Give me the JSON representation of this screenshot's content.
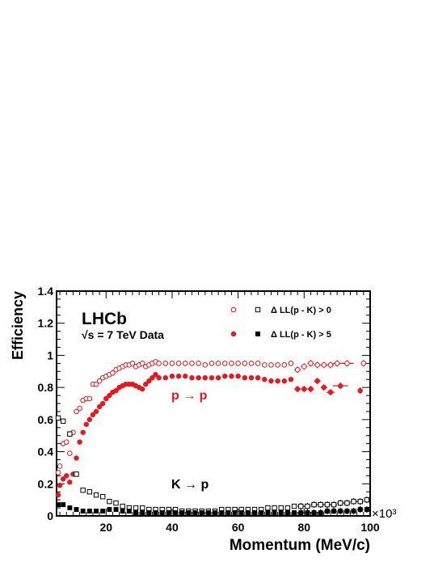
{
  "chart_data": {
    "type": "scatter",
    "xlabel": "Momentum (MeV/c)",
    "ylabel": "Efficiency",
    "x_scale_label": "×10³",
    "xlim": [
      5,
      100
    ],
    "ylim": [
      0,
      1.4
    ],
    "x_ticks": [
      20,
      40,
      60,
      80,
      100
    ],
    "y_ticks": [
      0,
      0.2,
      0.4,
      0.6,
      0.8,
      1,
      1.2,
      1.4
    ],
    "annotations": {
      "experiment": "LHCb",
      "energy": "√s = 7 TeV Data",
      "p_to_p": "p → p",
      "k_to_p": "K → p"
    },
    "legend": {
      "placement": "top-right",
      "entries": [
        {
          "label": "Δ LL(p - K) > 0",
          "markers": [
            "open-circle",
            "open-square"
          ]
        },
        {
          "label": "Δ LL(p - K) > 5",
          "markers": [
            "filled-circle",
            "filled-square"
          ]
        }
      ]
    },
    "colors": {
      "p_to_p": "#e8171b",
      "k_to_p": "#000000"
    },
    "series": [
      {
        "name": "p → p, Δ LL(p - K) > 0",
        "marker": "open-circle",
        "color": "#e8171b",
        "points": [
          [
            5.5,
            0.27
          ],
          [
            6,
            0.31
          ],
          [
            7,
            0.45
          ],
          [
            8,
            0.46
          ],
          [
            9,
            0.39
          ],
          [
            10,
            0.52
          ],
          [
            11,
            0.65
          ],
          [
            12,
            0.67
          ],
          [
            13,
            0.72
          ],
          [
            14,
            0.73
          ],
          [
            15,
            0.73
          ],
          [
            16,
            0.82
          ],
          [
            17,
            0.82
          ],
          [
            18,
            0.84
          ],
          [
            19,
            0.86
          ],
          [
            20,
            0.87
          ],
          [
            21,
            0.88
          ],
          [
            22,
            0.89
          ],
          [
            23,
            0.91
          ],
          [
            24,
            0.92
          ],
          [
            25,
            0.93
          ],
          [
            26,
            0.94
          ],
          [
            27,
            0.94
          ],
          [
            28,
            0.95
          ],
          [
            29,
            0.93
          ],
          [
            30,
            0.94
          ],
          [
            31,
            0.95
          ],
          [
            32,
            0.93
          ],
          [
            33,
            0.94
          ],
          [
            34,
            0.95
          ],
          [
            35,
            0.96
          ],
          [
            36,
            0.95
          ],
          [
            38,
            0.95
          ],
          [
            40,
            0.95
          ],
          [
            42,
            0.95
          ],
          [
            44,
            0.95
          ],
          [
            46,
            0.95
          ],
          [
            48,
            0.95
          ],
          [
            50,
            0.94
          ],
          [
            52,
            0.95
          ],
          [
            54,
            0.95
          ],
          [
            56,
            0.95
          ],
          [
            58,
            0.95
          ],
          [
            60,
            0.95
          ],
          [
            62,
            0.95
          ],
          [
            64,
            0.95
          ],
          [
            66,
            0.95
          ],
          [
            68,
            0.94
          ],
          [
            70,
            0.94
          ],
          [
            72,
            0.94
          ],
          [
            74,
            0.94
          ],
          [
            76,
            0.95
          ],
          [
            78,
            0.91
          ],
          [
            80,
            0.93
          ],
          [
            82,
            0.95
          ],
          [
            84,
            0.94
          ],
          [
            86,
            0.94
          ],
          [
            88,
            0.94
          ],
          [
            90,
            0.95
          ],
          [
            93,
            0.95
          ],
          [
            98,
            0.95
          ]
        ]
      },
      {
        "name": "p → p, Δ LL(p - K) > 5",
        "marker": "filled-circle",
        "color": "#e8171b",
        "points": [
          [
            5.5,
            0.13
          ],
          [
            6,
            0.19
          ],
          [
            7,
            0.23
          ],
          [
            8,
            0.25
          ],
          [
            9,
            0.21
          ],
          [
            10,
            0.26
          ],
          [
            11,
            0.36
          ],
          [
            12,
            0.46
          ],
          [
            13,
            0.52
          ],
          [
            14,
            0.57
          ],
          [
            15,
            0.6
          ],
          [
            16,
            0.63
          ],
          [
            17,
            0.65
          ],
          [
            18,
            0.68
          ],
          [
            19,
            0.7
          ],
          [
            20,
            0.73
          ],
          [
            21,
            0.75
          ],
          [
            22,
            0.77
          ],
          [
            23,
            0.78
          ],
          [
            24,
            0.8
          ],
          [
            25,
            0.81
          ],
          [
            26,
            0.82
          ],
          [
            27,
            0.82
          ],
          [
            28,
            0.82
          ],
          [
            29,
            0.81
          ],
          [
            30,
            0.8
          ],
          [
            31,
            0.79
          ],
          [
            32,
            0.82
          ],
          [
            33,
            0.84
          ],
          [
            34,
            0.86
          ],
          [
            35,
            0.88
          ],
          [
            36,
            0.86
          ],
          [
            38,
            0.86
          ],
          [
            40,
            0.87
          ],
          [
            42,
            0.87
          ],
          [
            44,
            0.87
          ],
          [
            46,
            0.86
          ],
          [
            48,
            0.86
          ],
          [
            50,
            0.86
          ],
          [
            52,
            0.86
          ],
          [
            54,
            0.86
          ],
          [
            56,
            0.87
          ],
          [
            58,
            0.87
          ],
          [
            60,
            0.87
          ],
          [
            62,
            0.86
          ],
          [
            64,
            0.86
          ],
          [
            66,
            0.86
          ],
          [
            68,
            0.85
          ],
          [
            70,
            0.84
          ],
          [
            72,
            0.84
          ],
          [
            74,
            0.84
          ],
          [
            76,
            0.85
          ],
          [
            78,
            0.79
          ],
          [
            80,
            0.79
          ],
          [
            82,
            0.79
          ],
          [
            84,
            0.84
          ],
          [
            86,
            0.8
          ],
          [
            88,
            0.77
          ],
          [
            91,
            0.81
          ],
          [
            97,
            0.78
          ]
        ]
      },
      {
        "name": "K → p, Δ LL(p - K) > 0",
        "marker": "open-square",
        "color": "#000000",
        "points": [
          [
            5.5,
            0.61
          ],
          [
            7,
            0.59
          ],
          [
            9,
            0.51
          ],
          [
            11,
            0.26
          ],
          [
            13,
            0.16
          ],
          [
            15,
            0.15
          ],
          [
            17,
            0.13
          ],
          [
            19,
            0.12
          ],
          [
            21,
            0.09
          ],
          [
            23,
            0.08
          ],
          [
            25,
            0.06
          ],
          [
            27,
            0.05
          ],
          [
            29,
            0.05
          ],
          [
            31,
            0.05
          ],
          [
            33,
            0.04
          ],
          [
            35,
            0.04
          ],
          [
            37,
            0.04
          ],
          [
            39,
            0.04
          ],
          [
            41,
            0.04
          ],
          [
            43,
            0.03
          ],
          [
            45,
            0.03
          ],
          [
            47,
            0.03
          ],
          [
            49,
            0.03
          ],
          [
            51,
            0.03
          ],
          [
            53,
            0.03
          ],
          [
            55,
            0.04
          ],
          [
            57,
            0.04
          ],
          [
            59,
            0.04
          ],
          [
            61,
            0.04
          ],
          [
            63,
            0.04
          ],
          [
            65,
            0.04
          ],
          [
            67,
            0.04
          ],
          [
            69,
            0.05
          ],
          [
            71,
            0.05
          ],
          [
            73,
            0.05
          ],
          [
            75,
            0.05
          ],
          [
            77,
            0.06
          ],
          [
            79,
            0.06
          ],
          [
            81,
            0.06
          ],
          [
            83,
            0.07
          ],
          [
            85,
            0.07
          ],
          [
            87,
            0.07
          ],
          [
            89,
            0.07
          ],
          [
            91,
            0.08
          ],
          [
            93,
            0.08
          ],
          [
            95,
            0.09
          ],
          [
            97,
            0.09
          ],
          [
            99,
            0.1
          ]
        ]
      },
      {
        "name": "K → p, Δ LL(p - K) > 5",
        "marker": "filled-square",
        "color": "#000000",
        "points": [
          [
            5.5,
            0.07
          ],
          [
            7,
            0.07
          ],
          [
            9,
            0.05
          ],
          [
            11,
            0.04
          ],
          [
            13,
            0.03
          ],
          [
            15,
            0.03
          ],
          [
            17,
            0.03
          ],
          [
            19,
            0.03
          ],
          [
            21,
            0.04
          ],
          [
            23,
            0.04
          ],
          [
            25,
            0.03
          ],
          [
            27,
            0.03
          ],
          [
            29,
            0.02
          ],
          [
            31,
            0.02
          ],
          [
            33,
            0.02
          ],
          [
            35,
            0.02
          ],
          [
            37,
            0.02
          ],
          [
            39,
            0.02
          ],
          [
            41,
            0.02
          ],
          [
            43,
            0.02
          ],
          [
            45,
            0.02
          ],
          [
            47,
            0.02
          ],
          [
            49,
            0.02
          ],
          [
            51,
            0.02
          ],
          [
            53,
            0.02
          ],
          [
            55,
            0.02
          ],
          [
            57,
            0.02
          ],
          [
            59,
            0.02
          ],
          [
            61,
            0.02
          ],
          [
            63,
            0.02
          ],
          [
            65,
            0.02
          ],
          [
            67,
            0.02
          ],
          [
            69,
            0.02
          ],
          [
            71,
            0.02
          ],
          [
            73,
            0.02
          ],
          [
            75,
            0.02
          ],
          [
            77,
            0.02
          ],
          [
            79,
            0.02
          ],
          [
            81,
            0.02
          ],
          [
            83,
            0.02
          ],
          [
            85,
            0.02
          ],
          [
            87,
            0.03
          ],
          [
            89,
            0.03
          ],
          [
            91,
            0.03
          ],
          [
            93,
            0.03
          ],
          [
            95,
            0.03
          ],
          [
            97,
            0.04
          ],
          [
            99,
            0.04
          ]
        ]
      }
    ]
  }
}
